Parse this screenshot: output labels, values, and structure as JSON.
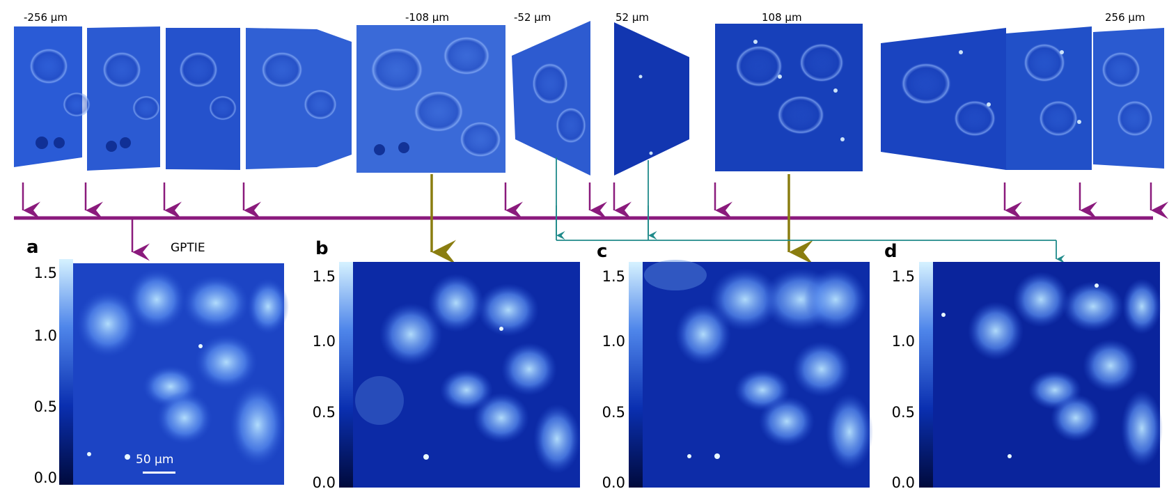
{
  "depth_labels": [
    "-256 µm",
    "-108 µm",
    "-52 µm",
    "52 µm",
    "108 µm",
    "256 µm"
  ],
  "panels": [
    {
      "letter": "a",
      "method": "GPTIE"
    },
    {
      "letter": "b",
      "method": ""
    },
    {
      "letter": "c",
      "method": ""
    },
    {
      "letter": "d",
      "method": ""
    }
  ],
  "colorbar_ticks": [
    "1.5",
    "1.0",
    "0.5",
    "0.0"
  ],
  "scale_bar": "50 µm",
  "colors": {
    "axis": "#8a1a7c",
    "olive_arrow": "#8a7d10",
    "teal_arrow": "#1f8a8a",
    "image_dark": "#0f2a9c",
    "image_mid": "#2d55d0",
    "image_light": "#9ed6ff"
  }
}
